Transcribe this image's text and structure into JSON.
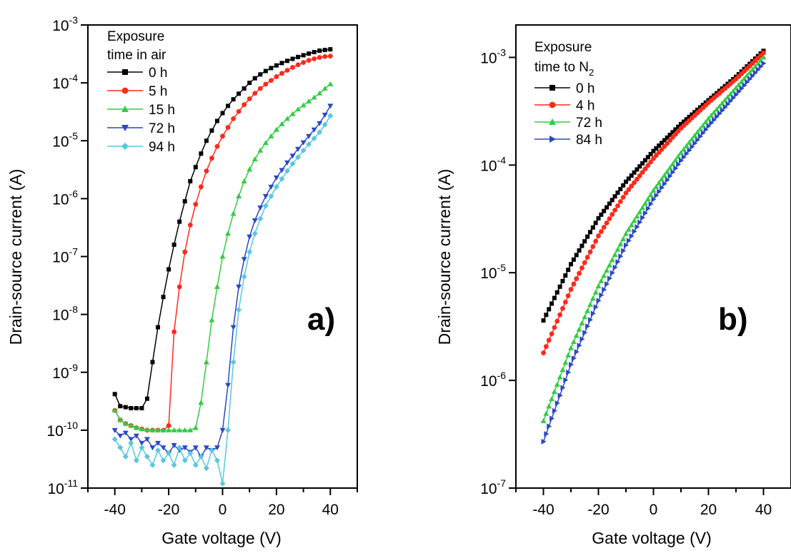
{
  "chart_data": [
    {
      "panel": "a)",
      "type": "line",
      "xlabel": "Gate voltage (V)",
      "ylabel": "Drain-source current (A)",
      "yscale": "log",
      "xlim": [
        -50,
        50
      ],
      "ylim": [
        1e-11,
        0.001
      ],
      "x_ticks": [
        "-40",
        "-20",
        "0",
        "20",
        "40"
      ],
      "y_ticks": [
        "10-11",
        "10-10",
        "10-9",
        "10-8",
        "10-7",
        "10-6",
        "10-5",
        "10-4",
        "10-3"
      ],
      "legend_title": [
        "Exposure",
        "time in air"
      ],
      "legend_position": "top-left",
      "series": [
        {
          "name": "0 h",
          "color": "#000000",
          "marker": "square",
          "points": [
            [
              -40,
              4.2e-10
            ],
            [
              -38,
              2.6e-10
            ],
            [
              -36,
              2.5e-10
            ],
            [
              -34,
              2.4e-10
            ],
            [
              -32,
              2.4e-10
            ],
            [
              -30,
              2.4e-10
            ],
            [
              -28,
              3.5e-10
            ],
            [
              -26,
              1.5e-09
            ],
            [
              -24,
              6e-09
            ],
            [
              -22,
              2e-08
            ],
            [
              -20,
              6e-08
            ],
            [
              -18,
              1.6e-07
            ],
            [
              -16,
              4e-07
            ],
            [
              -14,
              9e-07
            ],
            [
              -12,
              2e-06
            ],
            [
              -10,
              3.5e-06
            ],
            [
              -8,
              6e-06
            ],
            [
              -6,
              1e-05
            ],
            [
              -4,
              1.5e-05
            ],
            [
              -2,
              2.2e-05
            ],
            [
              0,
              3e-05
            ],
            [
              2,
              4e-05
            ],
            [
              4,
              5.2e-05
            ],
            [
              6,
              6.5e-05
            ],
            [
              8,
              8e-05
            ],
            [
              10,
              0.0001
            ],
            [
              12,
              0.00012
            ],
            [
              14,
              0.00014
            ],
            [
              16,
              0.00016
            ],
            [
              18,
              0.00018
            ],
            [
              20,
              0.0002
            ],
            [
              22,
              0.00022
            ],
            [
              24,
              0.00024
            ],
            [
              26,
              0.00026
            ],
            [
              28,
              0.00028
            ],
            [
              30,
              0.0003
            ],
            [
              32,
              0.00032
            ],
            [
              34,
              0.00034
            ],
            [
              36,
              0.00036
            ],
            [
              38,
              0.00037
            ],
            [
              40,
              0.00038
            ]
          ]
        },
        {
          "name": "5 h",
          "color": "#ff2a1a",
          "marker": "circle",
          "points": [
            [
              -40,
              2.2e-10
            ],
            [
              -38,
              1.5e-10
            ],
            [
              -36,
              1.3e-10
            ],
            [
              -34,
              1.2e-10
            ],
            [
              -32,
              1.1e-10
            ],
            [
              -30,
              1.05e-10
            ],
            [
              -28,
              1e-10
            ],
            [
              -26,
              1e-10
            ],
            [
              -24,
              1e-10
            ],
            [
              -22,
              1e-10
            ],
            [
              -20,
              1.2e-10
            ],
            [
              -18,
              5e-09
            ],
            [
              -16,
              3e-08
            ],
            [
              -14,
              1.2e-07
            ],
            [
              -12,
              3.5e-07
            ],
            [
              -10,
              8e-07
            ],
            [
              -8,
              1.6e-06
            ],
            [
              -6,
              3e-06
            ],
            [
              -4,
              5e-06
            ],
            [
              -2,
              8e-06
            ],
            [
              0,
              1.2e-05
            ],
            [
              2,
              1.7e-05
            ],
            [
              4,
              2.4e-05
            ],
            [
              6,
              3.2e-05
            ],
            [
              8,
              4.2e-05
            ],
            [
              10,
              5.3e-05
            ],
            [
              12,
              6.6e-05
            ],
            [
              14,
              8e-05
            ],
            [
              16,
              9.5e-05
            ],
            [
              18,
              0.00011
            ],
            [
              20,
              0.000128
            ],
            [
              22,
              0.000146
            ],
            [
              24,
              0.000165
            ],
            [
              26,
              0.000185
            ],
            [
              28,
              0.000205
            ],
            [
              30,
              0.000225
            ],
            [
              32,
              0.000245
            ],
            [
              34,
              0.00026
            ],
            [
              36,
              0.000275
            ],
            [
              38,
              0.000285
            ],
            [
              40,
              0.00029
            ]
          ]
        },
        {
          "name": "15 h",
          "color": "#33cc44",
          "marker": "triangle-up",
          "points": [
            [
              -40,
              2.2e-10
            ],
            [
              -38,
              1.5e-10
            ],
            [
              -36,
              1.3e-10
            ],
            [
              -34,
              1.2e-10
            ],
            [
              -32,
              1.1e-10
            ],
            [
              -30,
              1.05e-10
            ],
            [
              -28,
              1.02e-10
            ],
            [
              -26,
              1e-10
            ],
            [
              -24,
              1e-10
            ],
            [
              -22,
              1e-10
            ],
            [
              -20,
              1e-10
            ],
            [
              -18,
              1e-10
            ],
            [
              -16,
              1e-10
            ],
            [
              -14,
              1e-10
            ],
            [
              -12,
              1e-10
            ],
            [
              -10,
              1.1e-10
            ],
            [
              -8,
              3e-10
            ],
            [
              -6,
              1.5e-09
            ],
            [
              -4,
              8e-09
            ],
            [
              -2,
              3e-08
            ],
            [
              0,
              1e-07
            ],
            [
              2,
              2.5e-07
            ],
            [
              4,
              5.5e-07
            ],
            [
              6,
              1.1e-06
            ],
            [
              8,
              2e-06
            ],
            [
              10,
              3.2e-06
            ],
            [
              12,
              4.8e-06
            ],
            [
              14,
              6.8e-06
            ],
            [
              16,
              9.2e-06
            ],
            [
              18,
              1.2e-05
            ],
            [
              20,
              1.55e-05
            ],
            [
              22,
              1.95e-05
            ],
            [
              24,
              2.4e-05
            ],
            [
              26,
              2.9e-05
            ],
            [
              28,
              3.5e-05
            ],
            [
              30,
              4.1e-05
            ],
            [
              32,
              4.8e-05
            ],
            [
              34,
              5.6e-05
            ],
            [
              36,
              6.6e-05
            ],
            [
              38,
              8e-05
            ],
            [
              40,
              9.5e-05
            ]
          ]
        },
        {
          "name": "72 h",
          "color": "#2b47c8",
          "marker": "triangle-down",
          "points": [
            [
              -40,
              1e-10
            ],
            [
              -38,
              8e-11
            ],
            [
              -36,
              9e-11
            ],
            [
              -34,
              7e-11
            ],
            [
              -32,
              8e-11
            ],
            [
              -30,
              6e-11
            ],
            [
              -28,
              7e-11
            ],
            [
              -26,
              5e-11
            ],
            [
              -24,
              6e-11
            ],
            [
              -22,
              5e-11
            ],
            [
              -20,
              4e-11
            ],
            [
              -18,
              5.5e-11
            ],
            [
              -16,
              4.5e-11
            ],
            [
              -14,
              5e-11
            ],
            [
              -12,
              4.2e-11
            ],
            [
              -10,
              5e-11
            ],
            [
              -8,
              3.5e-11
            ],
            [
              -6,
              5e-11
            ],
            [
              -4,
              4.5e-11
            ],
            [
              -2,
              5e-11
            ],
            [
              0,
              1e-10
            ],
            [
              2,
              6e-10
            ],
            [
              4,
              6e-09
            ],
            [
              6,
              3e-08
            ],
            [
              8,
              9e-08
            ],
            [
              10,
              2.2e-07
            ],
            [
              12,
              4.2e-07
            ],
            [
              14,
              7e-07
            ],
            [
              16,
              1.1e-06
            ],
            [
              18,
              1.6e-06
            ],
            [
              20,
              2.3e-06
            ],
            [
              22,
              3.1e-06
            ],
            [
              24,
              4.2e-06
            ],
            [
              26,
              5.5e-06
            ],
            [
              28,
              7.2e-06
            ],
            [
              30,
              9.3e-06
            ],
            [
              32,
              1.2e-05
            ],
            [
              34,
              1.55e-05
            ],
            [
              36,
              2e-05
            ],
            [
              38,
              2.8e-05
            ],
            [
              40,
              4e-05
            ]
          ]
        },
        {
          "name": "94 h",
          "color": "#55c8e0",
          "marker": "diamond",
          "points": [
            [
              -40,
              7e-11
            ],
            [
              -38,
              5e-11
            ],
            [
              -36,
              3.5e-11
            ],
            [
              -34,
              6e-11
            ],
            [
              -32,
              3e-11
            ],
            [
              -30,
              5e-11
            ],
            [
              -28,
              3.5e-11
            ],
            [
              -26,
              2.5e-11
            ],
            [
              -24,
              4.5e-11
            ],
            [
              -22,
              3e-11
            ],
            [
              -20,
              4e-11
            ],
            [
              -18,
              2.5e-11
            ],
            [
              -16,
              5e-11
            ],
            [
              -14,
              3e-11
            ],
            [
              -12,
              4e-11
            ],
            [
              -10,
              2.5e-11
            ],
            [
              -8,
              3.5e-11
            ],
            [
              -6,
              2.2e-11
            ],
            [
              -4,
              4.5e-11
            ],
            [
              -2,
              3e-11
            ],
            [
              0,
              1.2e-11
            ],
            [
              2,
              1e-10
            ],
            [
              4,
              1.5e-09
            ],
            [
              6,
              1.2e-08
            ],
            [
              8,
              4.5e-08
            ],
            [
              10,
              1.2e-07
            ],
            [
              12,
              2.5e-07
            ],
            [
              14,
              4.5e-07
            ],
            [
              16,
              7.5e-07
            ],
            [
              18,
              1.1e-06
            ],
            [
              20,
              1.6e-06
            ],
            [
              22,
              2.2e-06
            ],
            [
              24,
              3e-06
            ],
            [
              26,
              4e-06
            ],
            [
              28,
              5.2e-06
            ],
            [
              30,
              6.8e-06
            ],
            [
              32,
              8.7e-06
            ],
            [
              34,
              1.1e-05
            ],
            [
              36,
              1.4e-05
            ],
            [
              38,
              1.9e-05
            ],
            [
              40,
              2.7e-05
            ]
          ]
        }
      ]
    },
    {
      "panel": "b)",
      "type": "line",
      "xlabel": "Gate voltage (V)",
      "ylabel": "Drain-source current (A)",
      "yscale": "log",
      "xlim": [
        -50,
        50
      ],
      "ylim": [
        1e-07,
        0.002
      ],
      "x_ticks": [
        "-40",
        "-20",
        "0",
        "20",
        "40"
      ],
      "y_ticks": [
        "10-7",
        "10-6",
        "10-5",
        "10-4",
        "10-3"
      ],
      "legend_title": [
        "Exposure",
        "time to N2"
      ],
      "legend_position": "top-left",
      "series": [
        {
          "name": "0 h",
          "color": "#000000",
          "marker": "square",
          "points": [
            [
              -40,
              3.6e-06
            ],
            [
              -30,
              1.2e-05
            ],
            [
              -20,
              3.2e-05
            ],
            [
              -10,
              7e-05
            ],
            [
              0,
              0.000135
            ],
            [
              10,
              0.00024
            ],
            [
              20,
              0.0004
            ],
            [
              30,
              0.00066
            ],
            [
              40,
              0.00115
            ]
          ]
        },
        {
          "name": "4 h",
          "color": "#ff2a1a",
          "marker": "circle",
          "points": [
            [
              -40,
              1.8e-06
            ],
            [
              -30,
              7e-06
            ],
            [
              -20,
              2.2e-05
            ],
            [
              -10,
              5.5e-05
            ],
            [
              0,
              0.000115
            ],
            [
              10,
              0.00022
            ],
            [
              20,
              0.00038
            ],
            [
              30,
              0.00063
            ],
            [
              40,
              0.0011
            ]
          ]
        },
        {
          "name": "72 h",
          "color": "#33cc44",
          "marker": "triangle-up",
          "points": [
            [
              -40,
              4.2e-07
            ],
            [
              -30,
              2e-06
            ],
            [
              -20,
              7.5e-06
            ],
            [
              -10,
              2.3e-05
            ],
            [
              0,
              5.8e-05
            ],
            [
              10,
              0.00013
            ],
            [
              20,
              0.00027
            ],
            [
              30,
              0.00052
            ],
            [
              40,
              0.001
            ]
          ]
        },
        {
          "name": "84 h",
          "color": "#2b47c8",
          "marker": "triangle-right",
          "points": [
            [
              -40,
              2.7e-07
            ],
            [
              -30,
              1.4e-06
            ],
            [
              -20,
              5.5e-06
            ],
            [
              -10,
              1.8e-05
            ],
            [
              0,
              4.8e-05
            ],
            [
              10,
              0.00011
            ],
            [
              20,
              0.00023
            ],
            [
              30,
              0.00045
            ],
            [
              40,
              0.00088
            ]
          ]
        }
      ]
    }
  ]
}
